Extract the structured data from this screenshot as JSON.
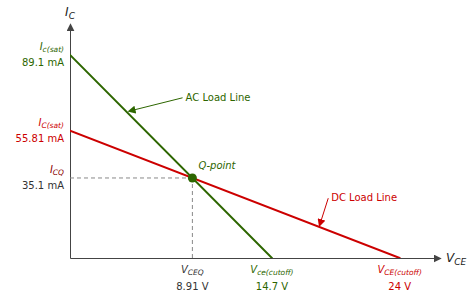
{
  "chart_data": {
    "type": "line",
    "xlabel": "VCE",
    "ylabel": "IC",
    "xlim": [
      0,
      26.5
    ],
    "ylim": [
      0,
      100
    ],
    "xticks": [],
    "yticks": [],
    "tick_labels": false,
    "grid": false,
    "series": [
      {
        "name": "DC Load Line",
        "type": "line",
        "color": "#cc0000",
        "x": [
          0,
          24
        ],
        "values": [
          55.81,
          0
        ]
      },
      {
        "name": "AC Load Line",
        "type": "line",
        "color": "#2d6600",
        "x": [
          0,
          14.7
        ],
        "values": [
          89.1,
          0
        ]
      },
      {
        "name": "Q-point",
        "type": "scatter",
        "marker": "circle",
        "color": "#2d6600",
        "x": [
          8.91
        ],
        "values": [
          35.1
        ]
      }
    ],
    "annotations": [
      {
        "text": "Ic(sat)",
        "label": "89.1 mA",
        "value": 89.1,
        "axis": "y",
        "colors": [
          "#2d6600",
          "#2d6600"
        ]
      },
      {
        "text": "IC(sat)",
        "label": "55.81 mA",
        "value": 55.81,
        "axis": "y",
        "colors": [
          "#cc0000",
          "#cc0000"
        ]
      },
      {
        "text": "ICQ",
        "label": "35.1 mA",
        "value": 35.1,
        "axis": "y",
        "colors": [
          "#8B0000",
          "#333333"
        ]
      },
      {
        "text": "VCEQ",
        "label": "8.91 V",
        "value": 8.91,
        "axis": "x",
        "colors": [
          "#333333",
          "#333333"
        ]
      },
      {
        "text": "Vce(cutoff)",
        "label": "14.7 V",
        "value": 14.7,
        "axis": "x",
        "colors": [
          "#2d6600",
          "#2d6600"
        ]
      },
      {
        "text": "VCE(cutoff)",
        "label": "24 V",
        "value": 24,
        "axis": "x",
        "colors": [
          "#cc0000",
          "#cc0000"
        ]
      }
    ]
  }
}
